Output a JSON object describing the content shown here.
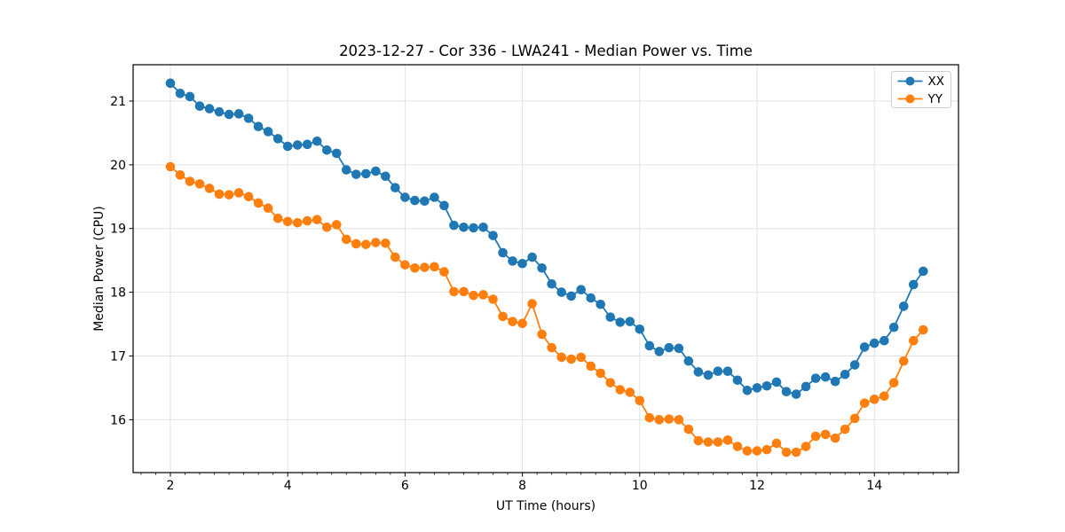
{
  "title": "2023-12-27 - Cor 336 - LWA241 - Median Power vs. Time",
  "chart_data": {
    "type": "line",
    "title": "2023-12-27 - Cor 336 - LWA241 - Median Power vs. Time",
    "xlabel": "UT Time (hours)",
    "ylabel": "Median Power (CPU)",
    "xlim": [
      1.365,
      15.434
    ],
    "ylim": [
      15.17,
      21.57
    ],
    "x_ticks": [
      2,
      4,
      6,
      8,
      10,
      12,
      14
    ],
    "y_ticks": [
      16,
      17,
      18,
      19,
      20,
      21
    ],
    "x_minor_tick_step": 0.25,
    "grid": true,
    "grid_color": "#e2e2e2",
    "legend_position": "upper right",
    "marker": "o",
    "x": [
      2.0,
      2.167,
      2.333,
      2.5,
      2.667,
      2.833,
      3.0,
      3.167,
      3.333,
      3.5,
      3.667,
      3.833,
      4.0,
      4.167,
      4.333,
      4.5,
      4.667,
      4.833,
      5.0,
      5.167,
      5.333,
      5.5,
      5.667,
      5.833,
      6.0,
      6.167,
      6.333,
      6.5,
      6.667,
      6.833,
      7.0,
      7.167,
      7.333,
      7.5,
      7.667,
      7.833,
      8.0,
      8.167,
      8.333,
      8.5,
      8.667,
      8.833,
      9.0,
      9.167,
      9.333,
      9.5,
      9.667,
      9.833,
      10.0,
      10.167,
      10.333,
      10.5,
      10.667,
      10.833,
      11.0,
      11.167,
      11.333,
      11.5,
      11.667,
      11.833,
      12.0,
      12.167,
      12.333,
      12.5,
      12.667,
      12.833,
      13.0,
      13.167,
      13.333,
      13.5,
      13.667,
      13.833,
      14.0,
      14.167,
      14.333,
      14.5,
      14.667,
      14.833
    ],
    "series": [
      {
        "name": "XX",
        "color": "#1f77b4",
        "values": [
          21.28,
          21.12,
          21.07,
          20.92,
          20.88,
          20.83,
          20.79,
          20.8,
          20.73,
          20.6,
          20.52,
          20.41,
          20.29,
          20.31,
          20.32,
          20.37,
          20.23,
          20.18,
          19.92,
          19.85,
          19.86,
          19.9,
          19.82,
          19.64,
          19.49,
          19.44,
          19.43,
          19.49,
          19.36,
          19.05,
          19.02,
          19.01,
          19.02,
          18.89,
          18.62,
          18.49,
          18.45,
          18.55,
          18.38,
          18.13,
          18.0,
          17.94,
          18.04,
          17.91,
          17.81,
          17.61,
          17.53,
          17.54,
          17.42,
          17.16,
          17.07,
          17.13,
          17.12,
          16.92,
          16.75,
          16.7,
          16.76,
          16.76,
          16.62,
          16.46,
          16.5,
          16.53,
          16.59,
          16.44,
          16.4,
          16.52,
          16.65,
          16.67,
          16.6,
          16.71,
          16.86,
          17.14,
          17.2,
          17.24,
          17.45,
          17.78,
          18.12,
          18.33
        ]
      },
      {
        "name": "YY",
        "color": "#ff7f0e",
        "values": [
          19.97,
          19.84,
          19.74,
          19.7,
          19.63,
          19.54,
          19.53,
          19.56,
          19.5,
          19.4,
          19.32,
          19.16,
          19.11,
          19.09,
          19.12,
          19.14,
          19.02,
          19.06,
          18.83,
          18.76,
          18.75,
          18.78,
          18.77,
          18.55,
          18.43,
          18.38,
          18.39,
          18.4,
          18.32,
          18.01,
          18.01,
          17.95,
          17.96,
          17.89,
          17.62,
          17.54,
          17.51,
          17.82,
          17.34,
          17.13,
          16.98,
          16.95,
          16.98,
          16.84,
          16.73,
          16.58,
          16.47,
          16.43,
          16.3,
          16.03,
          16.0,
          16.01,
          16.0,
          15.85,
          15.67,
          15.65,
          15.65,
          15.68,
          15.58,
          15.51,
          15.51,
          15.53,
          15.63,
          15.49,
          15.49,
          15.58,
          15.74,
          15.77,
          15.71,
          15.85,
          16.02,
          16.26,
          16.32,
          16.37,
          16.58,
          16.92,
          17.24,
          17.41
        ]
      }
    ]
  }
}
